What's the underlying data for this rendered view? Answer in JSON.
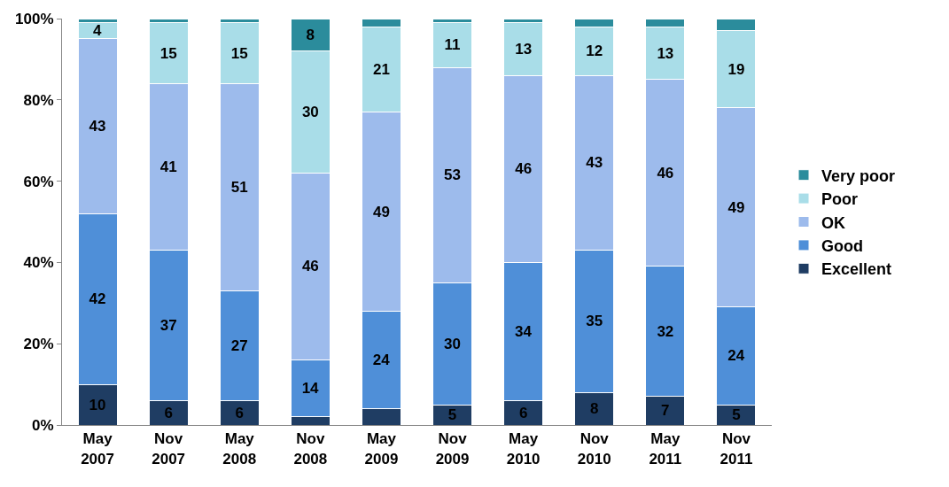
{
  "chart_data": {
    "type": "bar",
    "stacked": true,
    "categories": [
      "May\n2007",
      "Nov\n2007",
      "May\n2008",
      "Nov\n2008",
      "May\n2009",
      "Nov\n2009",
      "May\n2010",
      "Nov\n2010",
      "May\n2011",
      "Nov\n2011"
    ],
    "series": [
      {
        "name": "Excellent",
        "color": "#1f3d63",
        "values": [
          10,
          6,
          6,
          2,
          4,
          5,
          6,
          8,
          7,
          5
        ],
        "value_labels": [
          "10",
          "6",
          "6",
          null,
          null,
          "5",
          "6",
          "8",
          "7",
          "5"
        ]
      },
      {
        "name": "Good",
        "color": "#4f8fd8",
        "values": [
          42,
          37,
          27,
          14,
          24,
          30,
          34,
          35,
          32,
          24
        ],
        "value_labels": [
          "42",
          "37",
          "27",
          "14",
          "24",
          "30",
          "34",
          "35",
          "32",
          "24"
        ]
      },
      {
        "name": "OK",
        "color": "#9dbbec",
        "values": [
          43,
          41,
          51,
          46,
          49,
          53,
          46,
          43,
          46,
          49
        ],
        "value_labels": [
          "43",
          "41",
          "51",
          "46",
          "49",
          "53",
          "46",
          "43",
          "46",
          "49"
        ]
      },
      {
        "name": "Poor",
        "color": "#a9dde8",
        "values": [
          4,
          15,
          15,
          30,
          21,
          11,
          13,
          12,
          13,
          19
        ],
        "value_labels": [
          "4",
          "15",
          "15",
          "30",
          "21",
          "11",
          "13",
          "12",
          "13",
          "19"
        ]
      },
      {
        "name": "Very poor",
        "color": "#2b8c9c",
        "values": [
          1,
          1,
          1,
          8,
          2,
          1,
          1,
          2,
          2,
          3
        ],
        "value_labels": [
          null,
          null,
          null,
          "8",
          null,
          null,
          null,
          null,
          null,
          null
        ]
      }
    ],
    "ylim": [
      0,
      100
    ],
    "yticks": [
      {
        "value": 0,
        "label": "0%"
      },
      {
        "value": 20,
        "label": "20%"
      },
      {
        "value": 40,
        "label": "40%"
      },
      {
        "value": 60,
        "label": "60%"
      },
      {
        "value": 80,
        "label": "80%"
      },
      {
        "value": 100,
        "label": "100%"
      }
    ],
    "legend": "right"
  }
}
